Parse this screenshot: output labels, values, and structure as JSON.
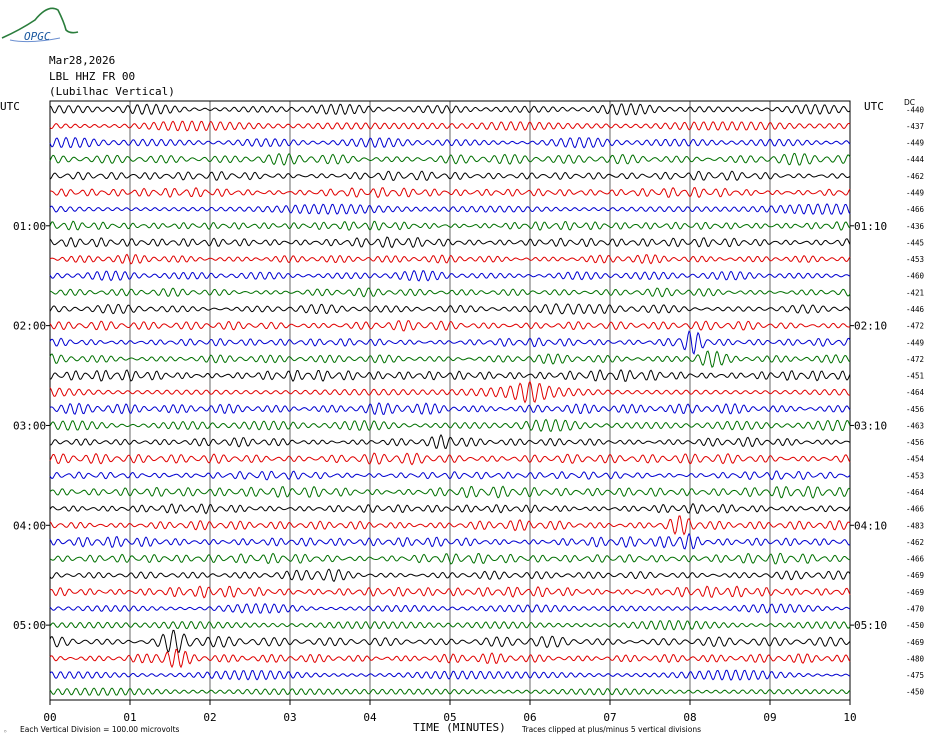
{
  "logo": {
    "text": "OPGC",
    "color": "#2a7d3c"
  },
  "header": {
    "date": "Mar28,2026",
    "station": "LBL HHZ FR 00",
    "channel_desc": "(Lubilhac Vertical)"
  },
  "utc_label_left": "UTC",
  "utc_label_right": "UTC",
  "dc_label": "DC",
  "footer": {
    "scale_note": "Each Vertical Division =  100.00 microvolts",
    "clip_note": "Traces clipped at plus/minus 5 vertical divisions",
    "x_title": "TIME (MINUTES)"
  },
  "colors": {
    "trace_cycle": [
      "#000000",
      "#e00000",
      "#0000d0",
      "#007000"
    ],
    "grid": "#000000",
    "background": "#ffffff"
  },
  "chart_data": {
    "type": "line",
    "chart_kind": "helicorder",
    "xlabel": "TIME (MINUTES)",
    "x_ticks": [
      "00",
      "01",
      "02",
      "03",
      "04",
      "05",
      "06",
      "07",
      "08",
      "09",
      "10"
    ],
    "xlim": [
      0,
      10
    ],
    "grid": true,
    "left_time_labels": [
      {
        "row": 7,
        "text": "01:00"
      },
      {
        "row": 13,
        "text": "02:00"
      },
      {
        "row": 19,
        "text": "03:00"
      },
      {
        "row": 25,
        "text": "04:00"
      },
      {
        "row": 31,
        "text": "05:00"
      }
    ],
    "right_time_labels": [
      {
        "row": 7,
        "text": "01:10"
      },
      {
        "row": 13,
        "text": "02:10"
      },
      {
        "row": 19,
        "text": "03:10"
      },
      {
        "row": 25,
        "text": "04:10"
      },
      {
        "row": 31,
        "text": "05:10"
      }
    ],
    "dc_offsets": [
      "-440",
      "-437",
      "-449",
      "-444",
      "-462",
      "-449",
      "-466",
      "-436",
      "-445",
      "-453",
      "-460",
      "-421",
      "-446",
      "-472",
      "-449",
      "-472",
      "-451",
      "-464",
      "-456",
      "-463",
      "-456",
      "-454",
      "-453",
      "-464",
      "-466",
      "-483",
      "-462",
      "-466",
      "-469",
      "-469",
      "-470",
      "-450",
      "-469",
      "-480",
      "-475",
      "-450"
    ],
    "trace_events": [
      {
        "row": 12,
        "minute": 6.4,
        "amplitude": 2.5
      },
      {
        "row": 14,
        "minute": 8.0,
        "amplitude": 2.8
      },
      {
        "row": 15,
        "minute": 8.2,
        "amplitude": 1.8
      },
      {
        "row": 17,
        "minute": 6.0,
        "amplitude": 1.5
      },
      {
        "row": 20,
        "minute": 5.0,
        "amplitude": 1.5
      },
      {
        "row": 25,
        "minute": 7.9,
        "amplitude": 1.6
      },
      {
        "row": 26,
        "minute": 7.9,
        "amplitude": 1.6
      },
      {
        "row": 28,
        "minute": 3.4,
        "amplitude": 1.5
      },
      {
        "row": 32,
        "minute": 1.6,
        "amplitude": 2.4
      },
      {
        "row": 33,
        "minute": 1.5,
        "amplitude": 1.8
      }
    ]
  }
}
